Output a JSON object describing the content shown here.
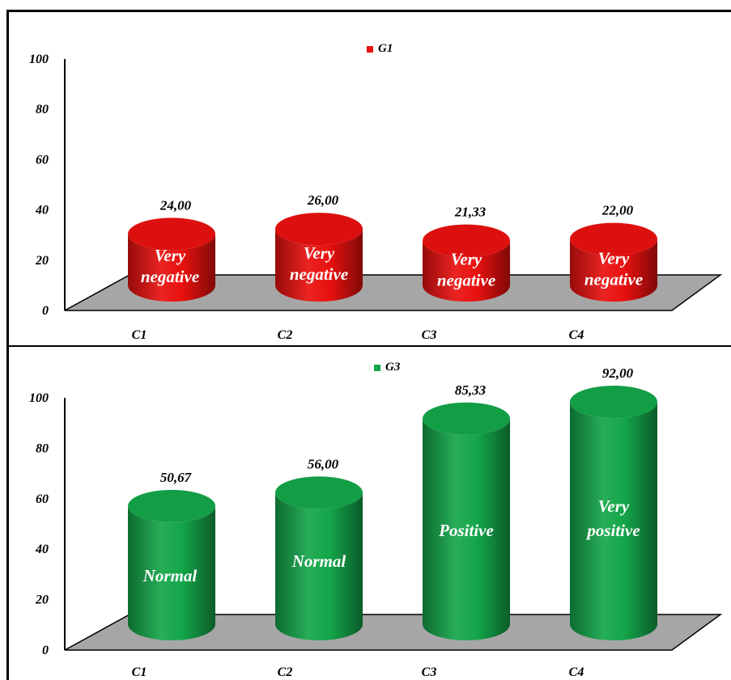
{
  "chart_data": [
    {
      "type": "bar",
      "style": "3d-cylinder",
      "legend": {
        "label": "G1",
        "placement": "top-center",
        "color": "#e8110f"
      },
      "categories": [
        "C1",
        "C2",
        "C3",
        "C4"
      ],
      "series": [
        {
          "name": "G1",
          "color": "#e8110f",
          "values": [
            24.0,
            26.0,
            21.33,
            22.0
          ]
        }
      ],
      "value_labels": [
        "24,00",
        "26,00",
        "21,33",
        "22,00"
      ],
      "bar_labels": [
        [
          "Very",
          "negative"
        ],
        [
          "Very",
          "negative"
        ],
        [
          "Very",
          "negative"
        ],
        [
          "Very",
          "negative"
        ]
      ],
      "y_ticks": [
        "0",
        "20",
        "40",
        "60",
        "80",
        "100"
      ],
      "ylim": [
        0,
        100
      ],
      "grid": false,
      "floor_color": "#a6a6a6"
    },
    {
      "type": "bar",
      "style": "3d-cylinder",
      "legend": {
        "label": "G3",
        "placement": "top-center",
        "color": "#14a64a"
      },
      "categories": [
        "C1",
        "C2",
        "C3",
        "C4"
      ],
      "series": [
        {
          "name": "G3",
          "color": "#14a64a",
          "values": [
            50.67,
            56.0,
            85.33,
            92.0
          ]
        }
      ],
      "value_labels": [
        "50,67",
        "56,00",
        "85,33",
        "92,00"
      ],
      "bar_labels": [
        [
          "Normal"
        ],
        [
          "Normal"
        ],
        [
          "Positive"
        ],
        [
          "Very",
          "positive"
        ]
      ],
      "y_ticks": [
        "0",
        "20",
        "40",
        "60",
        "80",
        "100"
      ],
      "ylim": [
        0,
        100
      ],
      "grid": false,
      "floor_color": "#a6a6a6"
    }
  ]
}
